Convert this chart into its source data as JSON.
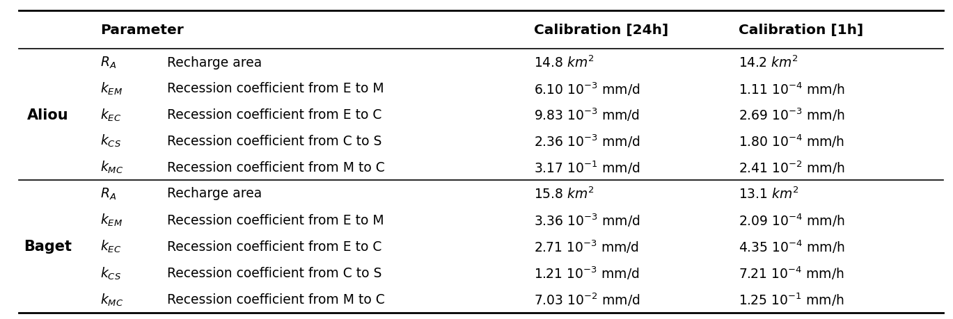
{
  "col_headers_left": "Parameter",
  "col_header_24h": "Calibration [24h]",
  "col_header_1h": "Calibration [1h]",
  "watershed_labels": [
    "Aliou",
    "Baget"
  ],
  "rows": [
    {
      "param": "$R_A$",
      "description": "Recharge area",
      "cal_24h": "14.8 $\\mathit{km}^2$",
      "cal_1h": "14.2 $\\mathit{km}^2$"
    },
    {
      "param": "$k_{EM}$",
      "description": "Recession coefficient from E to M",
      "cal_24h": "6.10 $10^{-3}$ mm/d",
      "cal_1h": "1.11 $10^{-4}$ mm/h"
    },
    {
      "param": "$k_{EC}$",
      "description": "Recession coefficient from E to C",
      "cal_24h": "9.83 $10^{-3}$ mm/d",
      "cal_1h": "2.69 $10^{-3}$ mm/h"
    },
    {
      "param": "$k_{CS}$",
      "description": "Recession coefficient from C to S",
      "cal_24h": "2.36 $10^{-3}$ mm/d",
      "cal_1h": "1.80 $10^{-4}$ mm/h"
    },
    {
      "param": "$k_{MC}$",
      "description": "Recession coefficient from M to C",
      "cal_24h": "3.17 $10^{-1}$ mm/d",
      "cal_1h": "2.41 $10^{-2}$ mm/h"
    },
    {
      "param": "$R_A$",
      "description": "Recharge area",
      "cal_24h": "15.8 $\\mathit{km}^2$",
      "cal_1h": "13.1 $\\mathit{km}^2$"
    },
    {
      "param": "$k_{EM}$",
      "description": "Recession coefficient from E to M",
      "cal_24h": "3.36 $10^{-3}$ mm/d",
      "cal_1h": "2.09 $10^{-4}$ mm/h"
    },
    {
      "param": "$k_{EC}$",
      "description": "Recession coefficient from E to C",
      "cal_24h": "2.71 $10^{-3}$ mm/d",
      "cal_1h": "4.35 $10^{-4}$ mm/h"
    },
    {
      "param": "$k_{CS}$",
      "description": "Recession coefficient from C to S",
      "cal_24h": "1.21 $10^{-3}$ mm/d",
      "cal_1h": "7.21 $10^{-4}$ mm/h"
    },
    {
      "param": "$k_{MC}$",
      "description": "Recession coefficient from M to C",
      "cal_24h": "7.03 $10^{-2}$ mm/d",
      "cal_1h": "1.25 $10^{-1}$ mm/h"
    }
  ],
  "bg_color": "#ffffff",
  "font_size": 13.5,
  "header_font_size": 14.5
}
